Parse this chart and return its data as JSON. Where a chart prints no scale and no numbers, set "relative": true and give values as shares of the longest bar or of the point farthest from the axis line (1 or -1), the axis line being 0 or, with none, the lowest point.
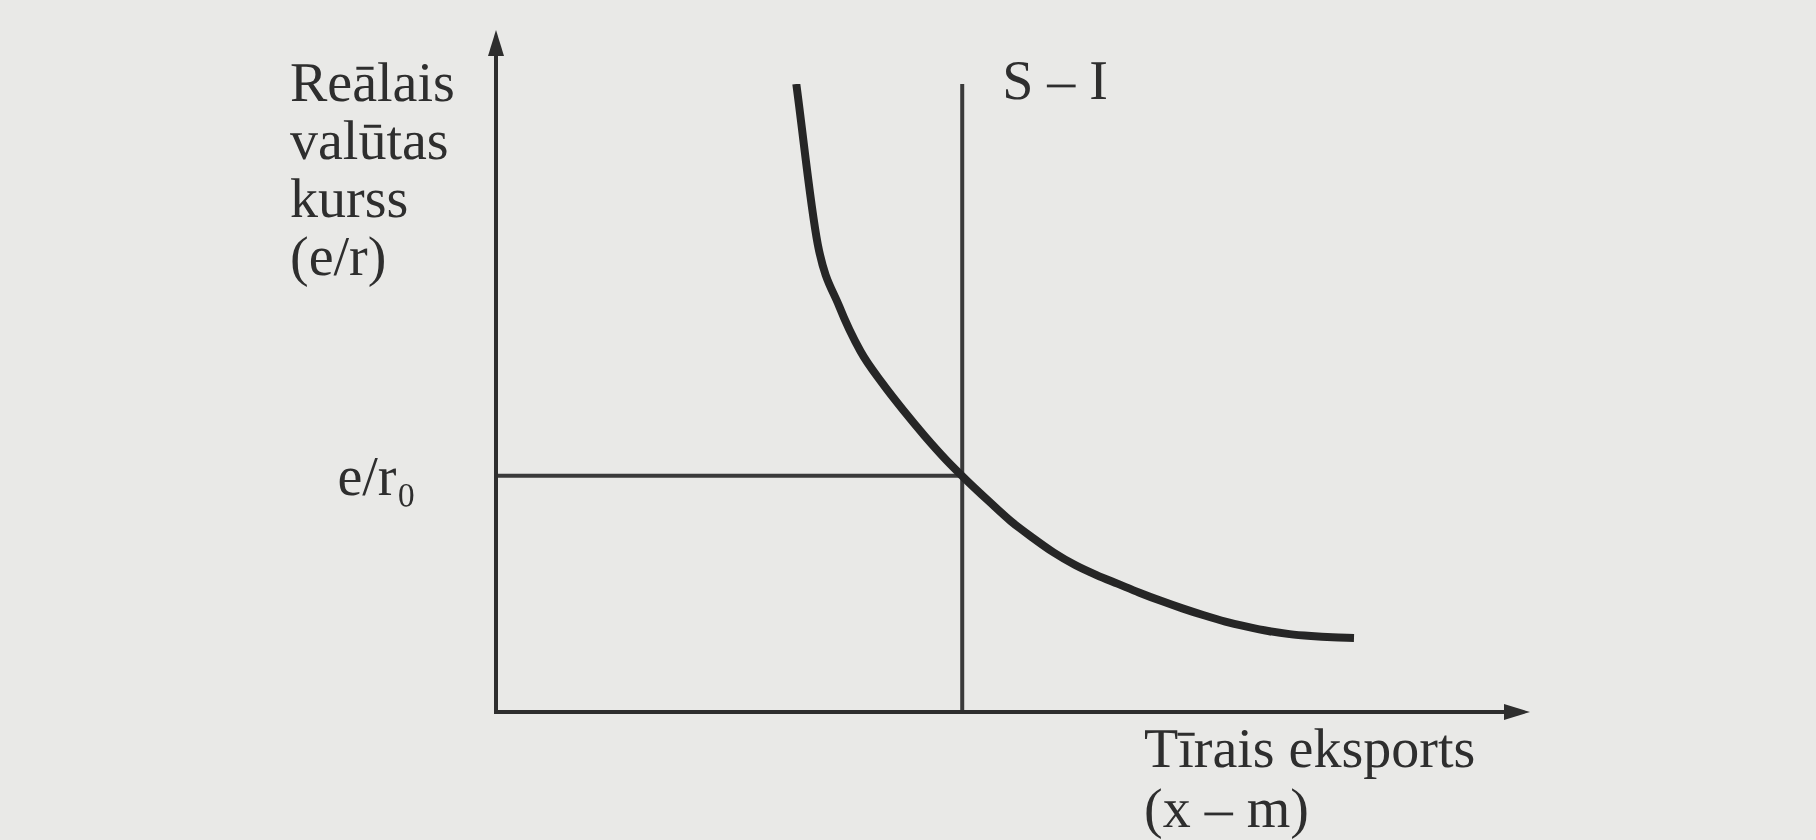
{
  "chart_data": {
    "type": "line",
    "relative": true,
    "xlabel": "Tīrais eksports (x – m)",
    "ylabel": "Reālais valūtas kurss (e/r)",
    "marker": "none",
    "categories": [
      null,
      null,
      null,
      null,
      null,
      null,
      null,
      null,
      null,
      null,
      null,
      null,
      null,
      null,
      null,
      null,
      null,
      null,
      null,
      null,
      null,
      null,
      null,
      null,
      null,
      null,
      null,
      null,
      null,
      null,
      null,
      null,
      null,
      null,
      null,
      null,
      null,
      null,
      null,
      null,
      null
    ],
    "series": [
      {
        "color": "#262626",
        "values": [
          null,
          null,
          null,
          null,
          null,
          null,
          null,
          null,
          null,
          null,
          null,
          null,
          null,
          null,
          1.0,
          0.745,
          0.646,
          0.574,
          0.524,
          0.48,
          0.439,
          0.401,
          0.367,
          0.335,
          0.304,
          0.278,
          0.254,
          0.234,
          0.218,
          0.204,
          0.19,
          0.177,
          0.165,
          0.154,
          0.144,
          0.136,
          0.129,
          0.124,
          0.121,
          0.119,
          0.118
        ]
      }
    ],
    "ref_lines": [
      {
        "axis": "y",
        "value": 0.376,
        "label": "e/r₀",
        "color": "#3a3a3a"
      }
    ],
    "annotations": [
      "S – I"
    ]
  }
}
